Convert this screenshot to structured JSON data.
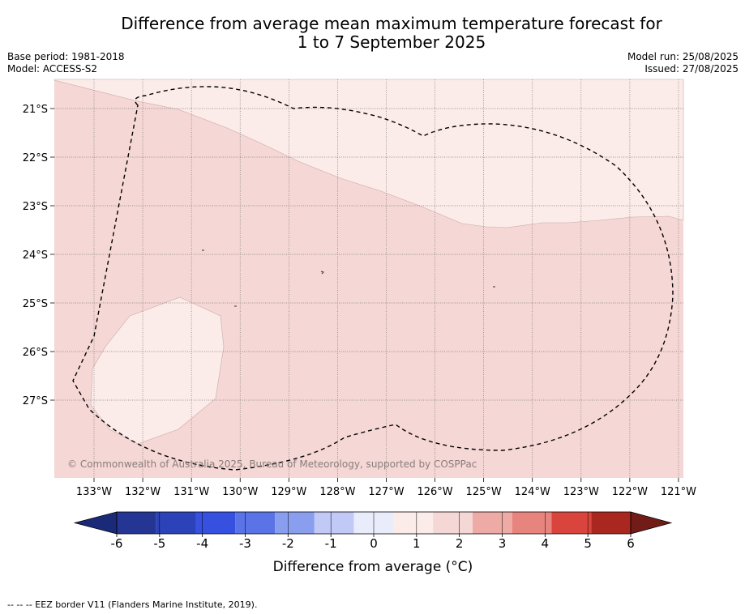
{
  "title": {
    "line1": "Difference from average mean maximum temperature forecast for",
    "line2": "1 to 7 September 2025"
  },
  "meta_left": {
    "base_period": "Base period: 1981-2018",
    "model": "Model: ACCESS-S2"
  },
  "meta_right": {
    "model_run": "Model run: 25/08/2025",
    "issued": "Issued: 27/08/2025"
  },
  "map": {
    "lat_labels": [
      "21°S",
      "22°S",
      "23°S",
      "24°S",
      "25°S",
      "26°S",
      "27°S"
    ],
    "lon_labels": [
      "133°W",
      "132°W",
      "131°W",
      "130°W",
      "129°W",
      "128°W",
      "127°W",
      "126°W",
      "125°W",
      "124°W",
      "123°W",
      "122°W",
      "121°W"
    ],
    "copyright": "© Commonwealth of Australia 2025, Bureau of Meteorology, supported by COSPPac",
    "regions": {
      "0_to_1_color": "#fbebe9",
      "1_to_2_color": "#f5d7d5"
    }
  },
  "colorbar": {
    "tick_labels": [
      "-6",
      "-5",
      "-4",
      "-3",
      "-2",
      "-1",
      "0",
      "1",
      "2",
      "3",
      "4",
      "5",
      "6"
    ],
    "colors": [
      "#253594",
      "#2c42b8",
      "#3651e0",
      "#5a73e6",
      "#8a9ef0",
      "#c1c9f6",
      "#e9ecfb",
      "#fbebe9",
      "#f5d7d5",
      "#eeaba6",
      "#e8847e",
      "#d9453c",
      "#a9271f"
    ],
    "under_color": "#1b2a78",
    "over_color": "#721c17",
    "label": "Difference from average (°C)"
  },
  "footnote": "-- -- -- EEZ border V11 (Flanders Marine Institute, 2019)."
}
